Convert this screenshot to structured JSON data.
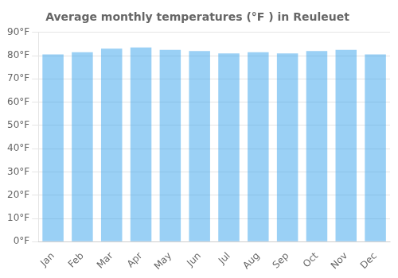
{
  "chart_data": {
    "type": "bar",
    "title": "Average monthly temperatures (°F ) in Reuleuet",
    "categories": [
      "Jan",
      "Feb",
      "Mar",
      "Apr",
      "May",
      "Jun",
      "Jul",
      "Aug",
      "Sep",
      "Oct",
      "Nov",
      "Dec"
    ],
    "values": [
      80.5,
      81.5,
      83.0,
      83.5,
      82.5,
      82.0,
      81.0,
      81.5,
      81.0,
      82.0,
      82.5,
      80.5
    ],
    "ylim": [
      0,
      90
    ],
    "yticks": [
      {
        "value": 0,
        "label": "0°F"
      },
      {
        "value": 10,
        "label": "10°F"
      },
      {
        "value": 20,
        "label": "20°F"
      },
      {
        "value": 30,
        "label": "30°F"
      },
      {
        "value": 40,
        "label": "40°F"
      },
      {
        "value": 50,
        "label": "50°F"
      },
      {
        "value": 60,
        "label": "60°F"
      },
      {
        "value": 70,
        "label": "70°F"
      },
      {
        "value": 80,
        "label": "80°F"
      },
      {
        "value": 90,
        "label": "90°F"
      }
    ],
    "grid": true
  }
}
